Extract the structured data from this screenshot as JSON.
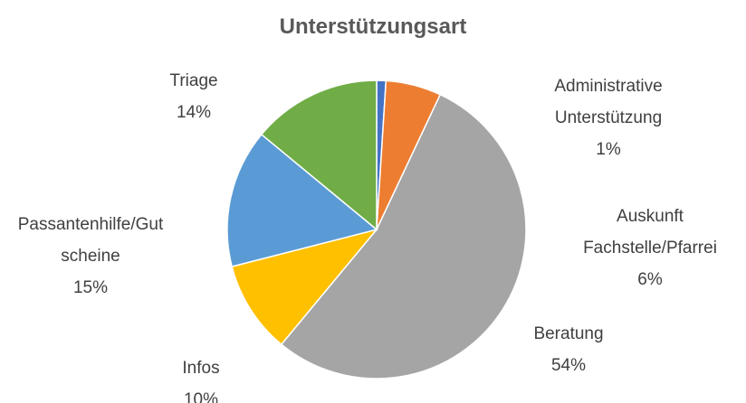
{
  "chart_data": {
    "type": "pie",
    "title": "Unterstützungsart",
    "categories": [
      "Administrative Unterstützung",
      "Auskunft Fachstelle/Pfarrei",
      "Beratung",
      "Infos",
      "Passantenhilfe/Gutscheine",
      "Triage"
    ],
    "values": [
      1,
      6,
      54,
      10,
      15,
      14
    ],
    "value_labels": [
      "1%",
      "6%",
      "54%",
      "10%",
      "15%",
      "14%"
    ],
    "colors": [
      "#4472c4",
      "#ed7d31",
      "#a5a5a5",
      "#ffc000",
      "#5b9bd5",
      "#70ad47"
    ]
  }
}
